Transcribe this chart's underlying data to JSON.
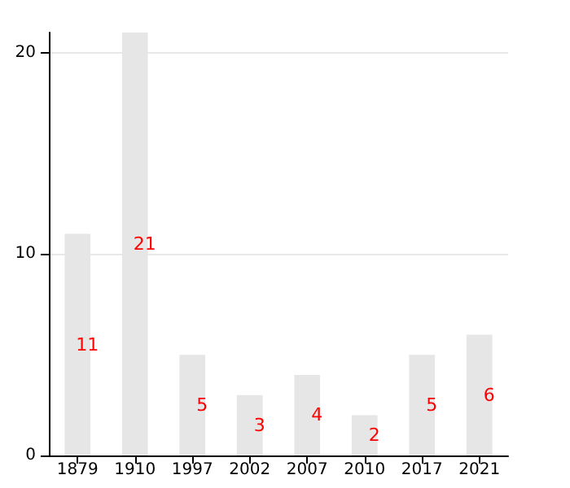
{
  "chart_data": {
    "type": "bar",
    "categories": [
      "1879",
      "1910",
      "1997",
      "2002",
      "2007",
      "2010",
      "2017",
      "2021"
    ],
    "values": [
      11,
      21,
      5,
      3,
      4,
      2,
      5,
      6
    ],
    "color": "#e6e6e6",
    "ylim": [
      0,
      21
    ],
    "yticks": [
      0,
      10,
      20
    ],
    "grid": "y",
    "data_labels": true
  }
}
